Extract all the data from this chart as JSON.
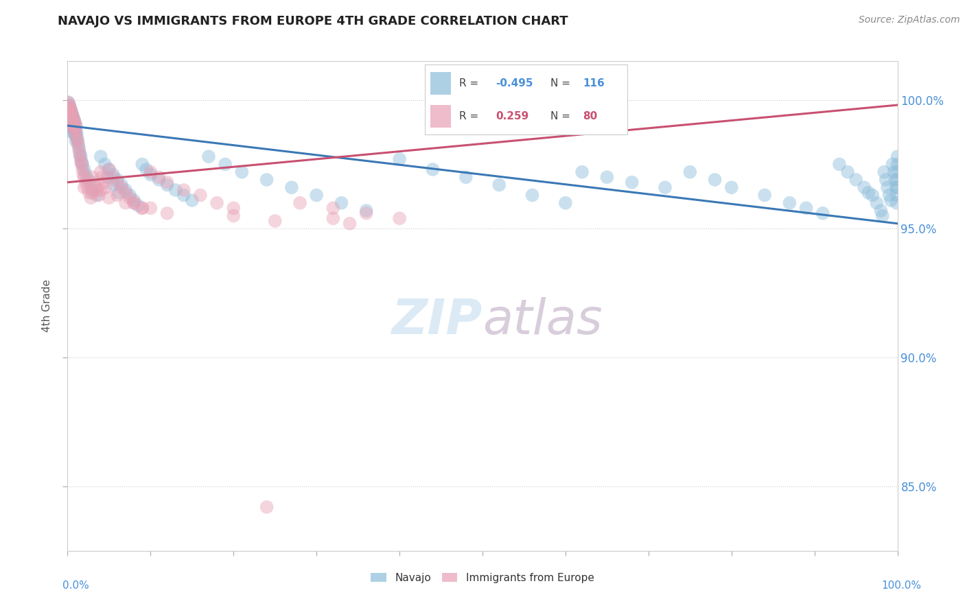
{
  "title": "NAVAJO VS IMMIGRANTS FROM EUROPE 4TH GRADE CORRELATION CHART",
  "source": "Source: ZipAtlas.com",
  "ylabel": "4th Grade",
  "ytick_labels": [
    "85.0%",
    "90.0%",
    "95.0%",
    "100.0%"
  ],
  "ytick_values": [
    0.85,
    0.9,
    0.95,
    1.0
  ],
  "xmin": 0.0,
  "xmax": 1.0,
  "ymin": 0.825,
  "ymax": 1.015,
  "navajo_color": "#8bbcda",
  "europe_color": "#e8a0b4",
  "navajo_R": -0.495,
  "navajo_N": 116,
  "europe_R": 0.259,
  "europe_N": 80,
  "trend_navajo_color": "#3a78b5",
  "trend_europe_color": "#c85070",
  "navajo_trend_x0": 0.0,
  "navajo_trend_y0": 0.99,
  "navajo_trend_x1": 1.0,
  "navajo_trend_y1": 0.952,
  "europe_trend_x0": 0.0,
  "europe_trend_y0": 0.968,
  "europe_trend_x1": 1.0,
  "europe_trend_y1": 0.998,
  "navajo_x": [
    0.001,
    0.001,
    0.001,
    0.001,
    0.002,
    0.002,
    0.002,
    0.003,
    0.003,
    0.003,
    0.004,
    0.004,
    0.004,
    0.005,
    0.005,
    0.005,
    0.006,
    0.006,
    0.006,
    0.007,
    0.007,
    0.007,
    0.007,
    0.008,
    0.008,
    0.008,
    0.009,
    0.009,
    0.01,
    0.01,
    0.01,
    0.01,
    0.011,
    0.012,
    0.013,
    0.014,
    0.015,
    0.016,
    0.017,
    0.018,
    0.02,
    0.022,
    0.025,
    0.028,
    0.03,
    0.035,
    0.04,
    0.045,
    0.05,
    0.055,
    0.06,
    0.065,
    0.07,
    0.075,
    0.08,
    0.085,
    0.09,
    0.095,
    0.1,
    0.11,
    0.12,
    0.13,
    0.14,
    0.15,
    0.17,
    0.19,
    0.21,
    0.24,
    0.27,
    0.3,
    0.33,
    0.36,
    0.4,
    0.44,
    0.48,
    0.52,
    0.56,
    0.6,
    0.62,
    0.65,
    0.68,
    0.72,
    0.75,
    0.78,
    0.8,
    0.84,
    0.87,
    0.89,
    0.91,
    0.93,
    0.94,
    0.95,
    0.96,
    0.965,
    0.97,
    0.975,
    0.98,
    0.982,
    0.984,
    0.986,
    0.988,
    0.99,
    0.992,
    0.994,
    0.996,
    0.997,
    0.998,
    0.999,
    0.999,
    1.0,
    1.0,
    1.0,
    1.0,
    1.0,
    0.048,
    0.055,
    0.062
  ],
  "navajo_y": [
    0.999,
    0.997,
    0.995,
    0.993,
    0.998,
    0.996,
    0.994,
    0.997,
    0.995,
    0.993,
    0.996,
    0.994,
    0.991,
    0.995,
    0.993,
    0.99,
    0.994,
    0.992,
    0.989,
    0.993,
    0.991,
    0.989,
    0.987,
    0.992,
    0.99,
    0.987,
    0.991,
    0.988,
    0.99,
    0.988,
    0.986,
    0.984,
    0.987,
    0.985,
    0.983,
    0.981,
    0.979,
    0.978,
    0.976,
    0.975,
    0.973,
    0.971,
    0.969,
    0.967,
    0.965,
    0.963,
    0.978,
    0.975,
    0.973,
    0.971,
    0.969,
    0.967,
    0.965,
    0.963,
    0.961,
    0.959,
    0.975,
    0.973,
    0.971,
    0.969,
    0.967,
    0.965,
    0.963,
    0.961,
    0.978,
    0.975,
    0.972,
    0.969,
    0.966,
    0.963,
    0.96,
    0.957,
    0.977,
    0.973,
    0.97,
    0.967,
    0.963,
    0.96,
    0.972,
    0.97,
    0.968,
    0.966,
    0.972,
    0.969,
    0.966,
    0.963,
    0.96,
    0.958,
    0.956,
    0.975,
    0.972,
    0.969,
    0.966,
    0.964,
    0.963,
    0.96,
    0.957,
    0.955,
    0.972,
    0.969,
    0.966,
    0.963,
    0.961,
    0.975,
    0.972,
    0.969,
    0.966,
    0.963,
    0.96,
    0.978,
    0.975,
    0.972,
    0.969,
    0.966,
    0.97,
    0.967,
    0.964
  ],
  "europe_x": [
    0.001,
    0.001,
    0.001,
    0.002,
    0.002,
    0.002,
    0.003,
    0.003,
    0.004,
    0.004,
    0.005,
    0.005,
    0.005,
    0.006,
    0.006,
    0.007,
    0.007,
    0.008,
    0.008,
    0.009,
    0.009,
    0.01,
    0.01,
    0.011,
    0.012,
    0.013,
    0.014,
    0.015,
    0.016,
    0.017,
    0.018,
    0.019,
    0.02,
    0.022,
    0.024,
    0.026,
    0.028,
    0.03,
    0.032,
    0.034,
    0.036,
    0.038,
    0.04,
    0.042,
    0.044,
    0.046,
    0.05,
    0.055,
    0.06,
    0.065,
    0.07,
    0.075,
    0.08,
    0.09,
    0.1,
    0.11,
    0.12,
    0.14,
    0.16,
    0.18,
    0.2,
    0.24,
    0.28,
    0.32,
    0.36,
    0.4,
    0.2,
    0.25,
    0.04,
    0.06,
    0.08,
    0.1,
    0.12,
    0.02,
    0.03,
    0.05,
    0.07,
    0.09,
    0.32,
    0.34
  ],
  "europe_y": [
    0.999,
    0.997,
    0.995,
    0.998,
    0.996,
    0.993,
    0.997,
    0.994,
    0.996,
    0.993,
    0.995,
    0.992,
    0.99,
    0.994,
    0.991,
    0.993,
    0.99,
    0.992,
    0.989,
    0.991,
    0.988,
    0.99,
    0.987,
    0.985,
    0.984,
    0.982,
    0.98,
    0.978,
    0.976,
    0.975,
    0.973,
    0.971,
    0.97,
    0.968,
    0.966,
    0.964,
    0.962,
    0.97,
    0.968,
    0.966,
    0.965,
    0.963,
    0.972,
    0.97,
    0.968,
    0.966,
    0.973,
    0.97,
    0.968,
    0.966,
    0.964,
    0.962,
    0.96,
    0.958,
    0.972,
    0.97,
    0.968,
    0.965,
    0.963,
    0.96,
    0.958,
    0.842,
    0.96,
    0.958,
    0.956,
    0.954,
    0.955,
    0.953,
    0.965,
    0.963,
    0.96,
    0.958,
    0.956,
    0.966,
    0.964,
    0.962,
    0.96,
    0.958,
    0.954,
    0.952
  ]
}
